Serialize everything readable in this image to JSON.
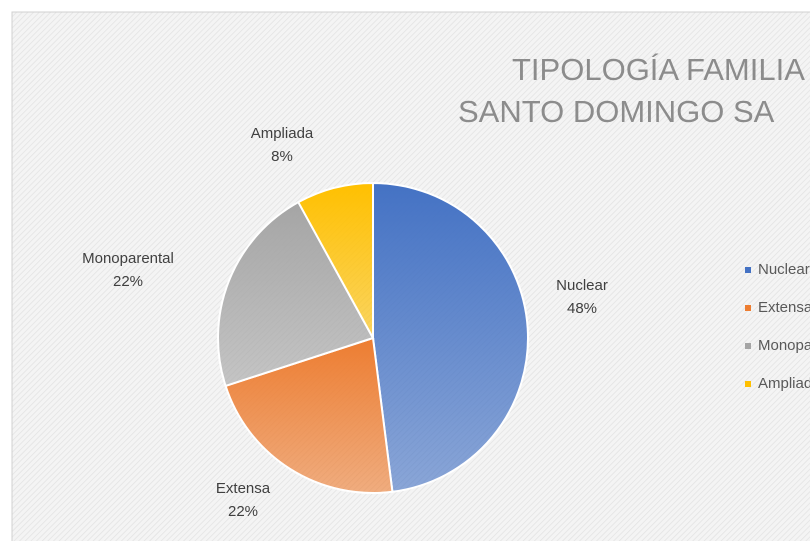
{
  "chart_data": {
    "type": "pie",
    "title": [
      "TIPOLOGÍA FAMILIA",
      "SANTO DOMINGO SA"
    ],
    "categories": [
      "Nuclear",
      "Extensa",
      "Monoparental",
      "Ampliada"
    ],
    "values": [
      48,
      22,
      22,
      8
    ],
    "value_labels": [
      "48%",
      "22%",
      "22%",
      "8%"
    ],
    "colors": [
      "#4472c4",
      "#ed7d31",
      "#a5a5a5",
      "#ffc000"
    ],
    "legend": "right"
  }
}
